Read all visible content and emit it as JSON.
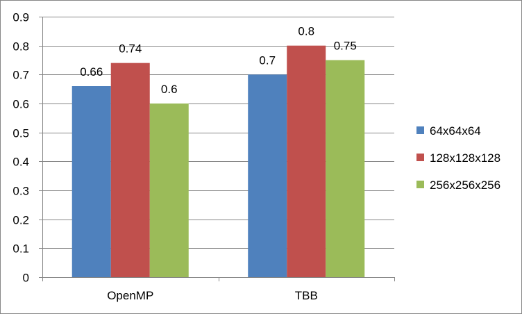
{
  "chart_data": {
    "type": "bar",
    "title": "",
    "xlabel": "",
    "ylabel": "",
    "categories": [
      "OpenMP",
      "TBB"
    ],
    "series": [
      {
        "name": "64x64x64",
        "values": [
          0.66,
          0.7
        ],
        "color": "#4F81BD"
      },
      {
        "name": "128x128x128",
        "values": [
          0.74,
          0.8
        ],
        "color": "#C0504D"
      },
      {
        "name": "256x256x256",
        "values": [
          0.6,
          0.75
        ],
        "color": "#9BBB59"
      }
    ],
    "ylim": [
      0,
      0.9
    ],
    "yticks": [
      "0",
      "0.1",
      "0.2",
      "0.3",
      "0.4",
      "0.5",
      "0.6",
      "0.7",
      "0.8",
      "0.9"
    ],
    "data_labels": [
      [
        "0.66",
        "0.7"
      ],
      [
        "0.74",
        "0.8"
      ],
      [
        "0.6",
        "0.75"
      ]
    ],
    "grid": true,
    "legend_position": "right"
  }
}
